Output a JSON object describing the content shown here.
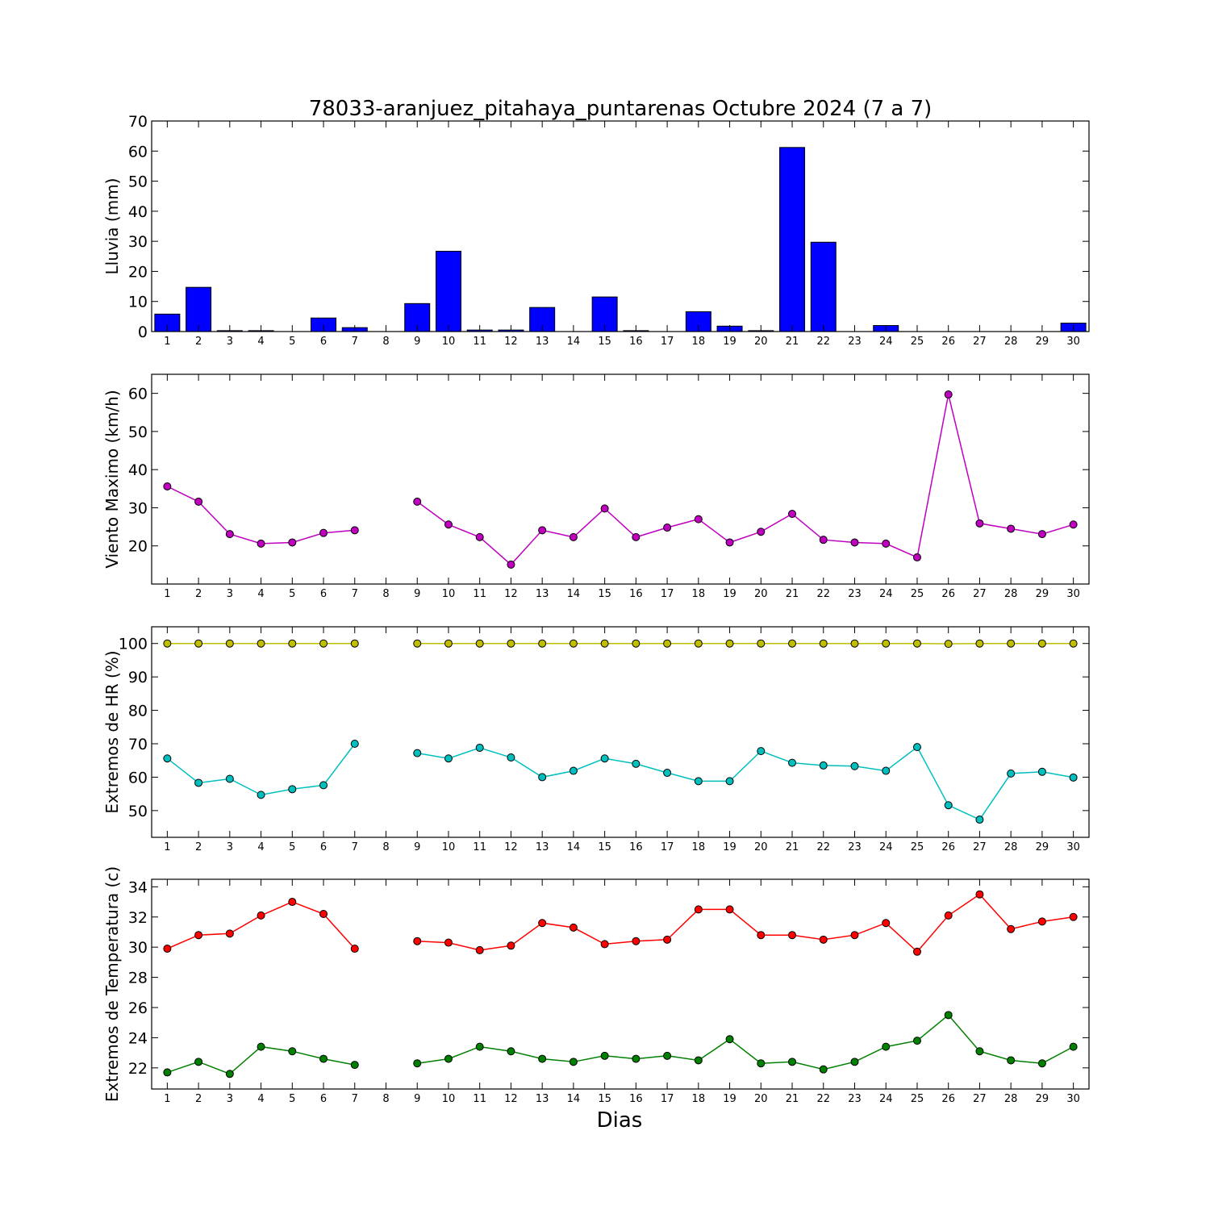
{
  "title": "78033-aranjuez_pitahaya_puntarenas Octubre 2024  (7 a 7)",
  "xlabel": "Dias",
  "colors": {
    "bar": "#0000ff",
    "wind": "#bf00bf",
    "hr_max": "#bfbf00",
    "hr_min": "#00bfbf",
    "t_max": "#ff0000",
    "t_min": "#008000"
  },
  "chart_data": [
    {
      "type": "bar",
      "ylabel": "Lluvia (mm)",
      "ylim": [
        0,
        70
      ],
      "yticks": [
        0,
        10,
        20,
        30,
        40,
        50,
        60,
        70
      ],
      "xlim": [
        0.5,
        30.5
      ],
      "xticks": [
        1,
        2,
        3,
        4,
        5,
        6,
        7,
        8,
        9,
        10,
        11,
        12,
        13,
        14,
        15,
        16,
        17,
        18,
        19,
        20,
        21,
        22,
        23,
        24,
        25,
        26,
        27,
        28,
        29,
        30
      ],
      "series": [
        {
          "x": [
            1,
            2,
            3,
            4,
            5,
            6,
            7,
            8,
            9,
            10,
            11,
            12,
            13,
            14,
            15,
            16,
            17,
            18,
            19,
            20,
            21,
            22,
            23,
            24,
            25,
            26,
            27,
            28,
            29,
            30
          ],
          "values": [
            5.8,
            14.7,
            0.3,
            0.3,
            0,
            4.5,
            1.3,
            0,
            9.3,
            26.7,
            0.5,
            0.5,
            8.0,
            0,
            11.5,
            0.3,
            0,
            6.6,
            1.8,
            0.3,
            61.2,
            29.7,
            0,
            2.0,
            0,
            0,
            0,
            0,
            0,
            2.8
          ]
        }
      ]
    },
    {
      "type": "line",
      "ylabel": "Viento Maximo (km/h)",
      "ylim": [
        10,
        65
      ],
      "yticks": [
        20,
        30,
        40,
        50,
        60
      ],
      "xlim": [
        0.5,
        30.5
      ],
      "xticks": [
        1,
        2,
        3,
        4,
        5,
        6,
        7,
        8,
        9,
        10,
        11,
        12,
        13,
        14,
        15,
        16,
        17,
        18,
        19,
        20,
        21,
        22,
        23,
        24,
        25,
        26,
        27,
        28,
        29,
        30
      ],
      "series": [
        {
          "color_key": "wind",
          "x": [
            1,
            2,
            3,
            4,
            5,
            6,
            7,
            8,
            9,
            10,
            11,
            12,
            13,
            14,
            15,
            16,
            17,
            18,
            19,
            20,
            21,
            22,
            23,
            24,
            25,
            26,
            27,
            28,
            29,
            30
          ],
          "values": [
            35.6,
            31.6,
            23.1,
            20.6,
            20.9,
            23.4,
            24.1,
            null,
            31.6,
            25.6,
            22.3,
            15.1,
            24.1,
            22.3,
            29.8,
            22.3,
            24.8,
            27.0,
            20.9,
            23.7,
            28.4,
            21.6,
            20.9,
            20.6,
            17.0,
            59.7,
            25.9,
            24.5,
            23.1,
            25.6
          ]
        }
      ]
    },
    {
      "type": "line",
      "ylabel": "Extremos de HR (%)",
      "ylim": [
        42,
        105
      ],
      "yticks": [
        50,
        60,
        70,
        80,
        90,
        100
      ],
      "xlim": [
        0.5,
        30.5
      ],
      "xticks": [
        1,
        2,
        3,
        4,
        5,
        6,
        7,
        8,
        9,
        10,
        11,
        12,
        13,
        14,
        15,
        16,
        17,
        18,
        19,
        20,
        21,
        22,
        23,
        24,
        25,
        26,
        27,
        28,
        29,
        30
      ],
      "series": [
        {
          "color_key": "hr_max",
          "x": [
            1,
            2,
            3,
            4,
            5,
            6,
            7,
            8,
            9,
            10,
            11,
            12,
            13,
            14,
            15,
            16,
            17,
            18,
            19,
            20,
            21,
            22,
            23,
            24,
            25,
            26,
            27,
            28,
            29,
            30
          ],
          "values": [
            100,
            100,
            100,
            100,
            100,
            100,
            100,
            null,
            100,
            100,
            100,
            100,
            100,
            100,
            100,
            100,
            100,
            100,
            100,
            100,
            100,
            100,
            100,
            100,
            100,
            99.9,
            100,
            100,
            100,
            100
          ]
        },
        {
          "color_key": "hr_min",
          "x": [
            1,
            2,
            3,
            4,
            5,
            6,
            7,
            8,
            9,
            10,
            11,
            12,
            13,
            14,
            15,
            16,
            17,
            18,
            19,
            20,
            21,
            22,
            23,
            24,
            25,
            26,
            27,
            28,
            29,
            30
          ],
          "values": [
            65.6,
            58.3,
            59.5,
            54.7,
            56.4,
            57.6,
            70.0,
            null,
            67.2,
            65.6,
            68.8,
            65.9,
            60.0,
            61.9,
            65.6,
            64.0,
            61.3,
            58.8,
            58.8,
            67.8,
            64.3,
            63.5,
            63.3,
            61.9,
            69.0,
            51.6,
            47.3,
            61.1,
            61.6,
            59.9
          ]
        }
      ]
    },
    {
      "type": "line",
      "ylabel": "Extremos de Temperatura (c)",
      "ylim": [
        20.6,
        34.5
      ],
      "yticks": [
        22,
        24,
        26,
        28,
        30,
        32,
        34
      ],
      "xlim": [
        0.5,
        30.5
      ],
      "xticks": [
        1,
        2,
        3,
        4,
        5,
        6,
        7,
        8,
        9,
        10,
        11,
        12,
        13,
        14,
        15,
        16,
        17,
        18,
        19,
        20,
        21,
        22,
        23,
        24,
        25,
        26,
        27,
        28,
        29,
        30
      ],
      "series": [
        {
          "color_key": "t_max",
          "x": [
            1,
            2,
            3,
            4,
            5,
            6,
            7,
            8,
            9,
            10,
            11,
            12,
            13,
            14,
            15,
            16,
            17,
            18,
            19,
            20,
            21,
            22,
            23,
            24,
            25,
            26,
            27,
            28,
            29,
            30
          ],
          "values": [
            29.9,
            30.8,
            30.9,
            32.1,
            33.0,
            32.2,
            29.9,
            null,
            30.4,
            30.3,
            29.8,
            30.1,
            31.6,
            31.3,
            30.2,
            30.4,
            30.5,
            32.5,
            32.5,
            30.8,
            30.8,
            30.5,
            30.8,
            31.6,
            29.7,
            32.1,
            33.5,
            31.2,
            31.7,
            32.0
          ]
        },
        {
          "color_key": "t_min",
          "x": [
            1,
            2,
            3,
            4,
            5,
            6,
            7,
            8,
            9,
            10,
            11,
            12,
            13,
            14,
            15,
            16,
            17,
            18,
            19,
            20,
            21,
            22,
            23,
            24,
            25,
            26,
            27,
            28,
            29,
            30
          ],
          "values": [
            21.7,
            22.4,
            21.6,
            23.4,
            23.1,
            22.6,
            22.2,
            null,
            22.3,
            22.6,
            23.4,
            23.1,
            22.6,
            22.4,
            22.8,
            22.6,
            22.8,
            22.5,
            23.9,
            22.3,
            22.4,
            21.9,
            22.4,
            23.4,
            23.8,
            25.5,
            23.1,
            22.5,
            22.3,
            23.4
          ]
        }
      ]
    }
  ]
}
